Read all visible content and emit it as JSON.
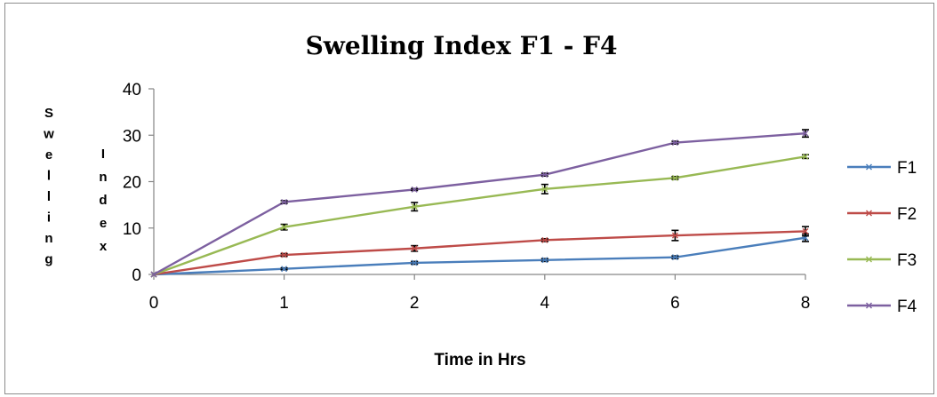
{
  "chart_data": {
    "type": "line",
    "title": "Swelling Index F1 - F4",
    "xlabel": "Time in Hrs",
    "ylabel_left": "Swelling",
    "ylabel_right": "Index",
    "categories": [
      "0",
      "1",
      "2",
      "4",
      "6",
      "8"
    ],
    "ylim": [
      0,
      40
    ],
    "yticks": [
      "0",
      "10",
      "20",
      "30",
      "40"
    ],
    "grid": false,
    "legend_position": "right",
    "series": [
      {
        "name": "F1",
        "color": "#4a7ebb",
        "values": [
          0,
          1.2,
          2.5,
          3.1,
          3.7,
          7.9
        ],
        "errors": [
          0,
          0.2,
          0.3,
          0.3,
          0.3,
          0.8
        ]
      },
      {
        "name": "F2",
        "color": "#be4b48",
        "values": [
          0,
          4.2,
          5.6,
          7.4,
          8.4,
          9.3
        ],
        "errors": [
          0,
          0.3,
          0.6,
          0.3,
          1.1,
          1.0
        ]
      },
      {
        "name": "F3",
        "color": "#98b954",
        "values": [
          0,
          10.2,
          14.6,
          18.4,
          20.8,
          25.4
        ],
        "errors": [
          0,
          0.6,
          0.9,
          1.0,
          0.3,
          0.4
        ]
      },
      {
        "name": "F4",
        "color": "#7d60a0",
        "values": [
          0,
          15.6,
          18.3,
          21.5,
          28.4,
          30.4
        ],
        "errors": [
          0,
          0.3,
          0.2,
          0.3,
          0.3,
          0.8
        ]
      }
    ]
  }
}
